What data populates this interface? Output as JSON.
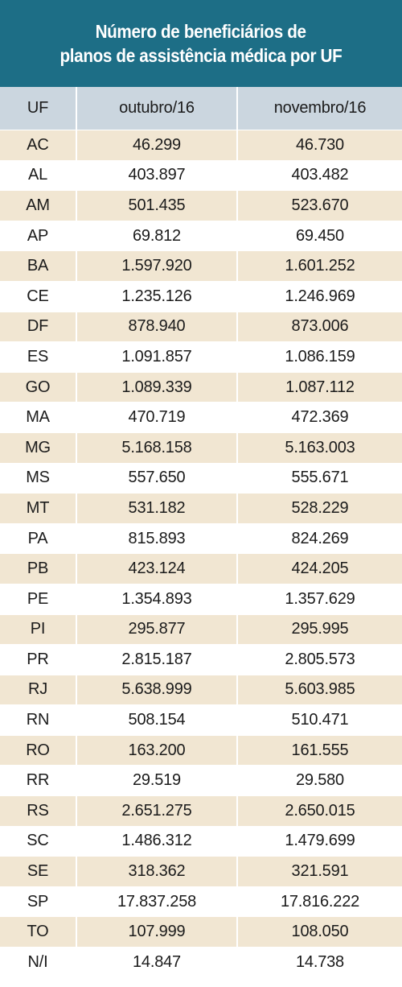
{
  "title": {
    "line1": "Número de beneficiários de",
    "line2": "planos de assistência médica por UF"
  },
  "colors": {
    "title_band": "#1d6e86",
    "header_bg": "#cbd6df",
    "row_shaded": "#f1e6d2",
    "row_plain": "#ffffff"
  },
  "chart_data": {
    "type": "table",
    "title": "Número de beneficiários de planos de assistência médica por UF",
    "columns": [
      "UF",
      "outubro/16",
      "novembro/16"
    ],
    "rows": [
      [
        "AC",
        "46.299",
        "46.730"
      ],
      [
        "AL",
        "403.897",
        "403.482"
      ],
      [
        "AM",
        "501.435",
        "523.670"
      ],
      [
        "AP",
        "69.812",
        "69.450"
      ],
      [
        "BA",
        "1.597.920",
        "1.601.252"
      ],
      [
        "CE",
        "1.235.126",
        "1.246.969"
      ],
      [
        "DF",
        "878.940",
        "873.006"
      ],
      [
        "ES",
        "1.091.857",
        "1.086.159"
      ],
      [
        "GO",
        "1.089.339",
        "1.087.112"
      ],
      [
        "MA",
        "470.719",
        "472.369"
      ],
      [
        "MG",
        "5.168.158",
        "5.163.003"
      ],
      [
        "MS",
        "557.650",
        "555.671"
      ],
      [
        "MT",
        "531.182",
        "528.229"
      ],
      [
        "PA",
        "815.893",
        "824.269"
      ],
      [
        "PB",
        "423.124",
        "424.205"
      ],
      [
        "PE",
        "1.354.893",
        "1.357.629"
      ],
      [
        "PI",
        "295.877",
        "295.995"
      ],
      [
        "PR",
        "2.815.187",
        "2.805.573"
      ],
      [
        "RJ",
        "5.638.999",
        "5.603.985"
      ],
      [
        "RN",
        "508.154",
        "510.471"
      ],
      [
        "RO",
        "163.200",
        "161.555"
      ],
      [
        "RR",
        "29.519",
        "29.580"
      ],
      [
        "RS",
        "2.651.275",
        "2.650.015"
      ],
      [
        "SC",
        "1.486.312",
        "1.479.699"
      ],
      [
        "SE",
        "318.362",
        "321.591"
      ],
      [
        "SP",
        "17.837.258",
        "17.816.222"
      ],
      [
        "TO",
        "107.999",
        "108.050"
      ],
      [
        "N/I",
        "14.847",
        "14.738"
      ]
    ]
  }
}
